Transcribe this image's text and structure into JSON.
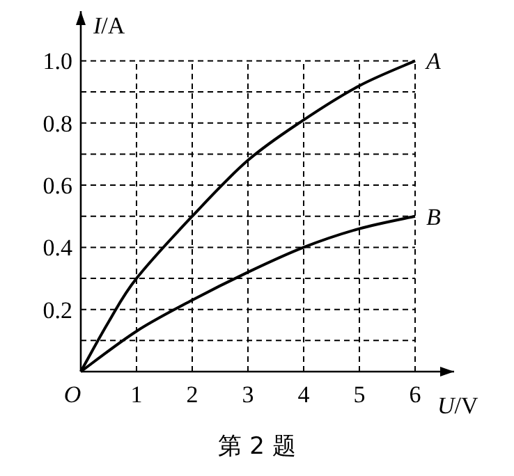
{
  "chart_data": {
    "type": "line",
    "xlabel": "U/V",
    "ylabel": "I/A",
    "annotations": [
      "第 2 题"
    ],
    "xlim": [
      0,
      6.7
    ],
    "ylim": [
      0,
      1.16
    ],
    "xticks": [
      {
        "value": 0,
        "label": "O"
      },
      1,
      2,
      3,
      4,
      5,
      6
    ],
    "yticks": [
      {
        "value": 0.1,
        "label": null
      },
      {
        "value": 0.2,
        "label": "0.2"
      },
      {
        "value": 0.3,
        "label": null
      },
      {
        "value": 0.4,
        "label": "0.4"
      },
      {
        "value": 0.5,
        "label": null
      },
      {
        "value": 0.6,
        "label": "0.6"
      },
      {
        "value": 0.7,
        "label": null
      },
      {
        "value": 0.8,
        "label": "0.8"
      },
      {
        "value": 0.9,
        "label": null
      },
      {
        "value": 1.0,
        "label": "1.0"
      }
    ],
    "grid": true,
    "marker": "none",
    "line_style": "solid",
    "series": [
      {
        "name": "A",
        "color": "#000000",
        "x": [
          0,
          0.5,
          1,
          2,
          3,
          4,
          5,
          6
        ],
        "values": [
          0,
          0.16,
          0.3,
          0.5,
          0.68,
          0.81,
          0.92,
          1.0
        ]
      },
      {
        "name": "B",
        "color": "#000000",
        "x": [
          0,
          1,
          2,
          3,
          4,
          5,
          6
        ],
        "values": [
          0,
          0.13,
          0.23,
          0.32,
          0.4,
          0.46,
          0.5
        ]
      }
    ]
  }
}
